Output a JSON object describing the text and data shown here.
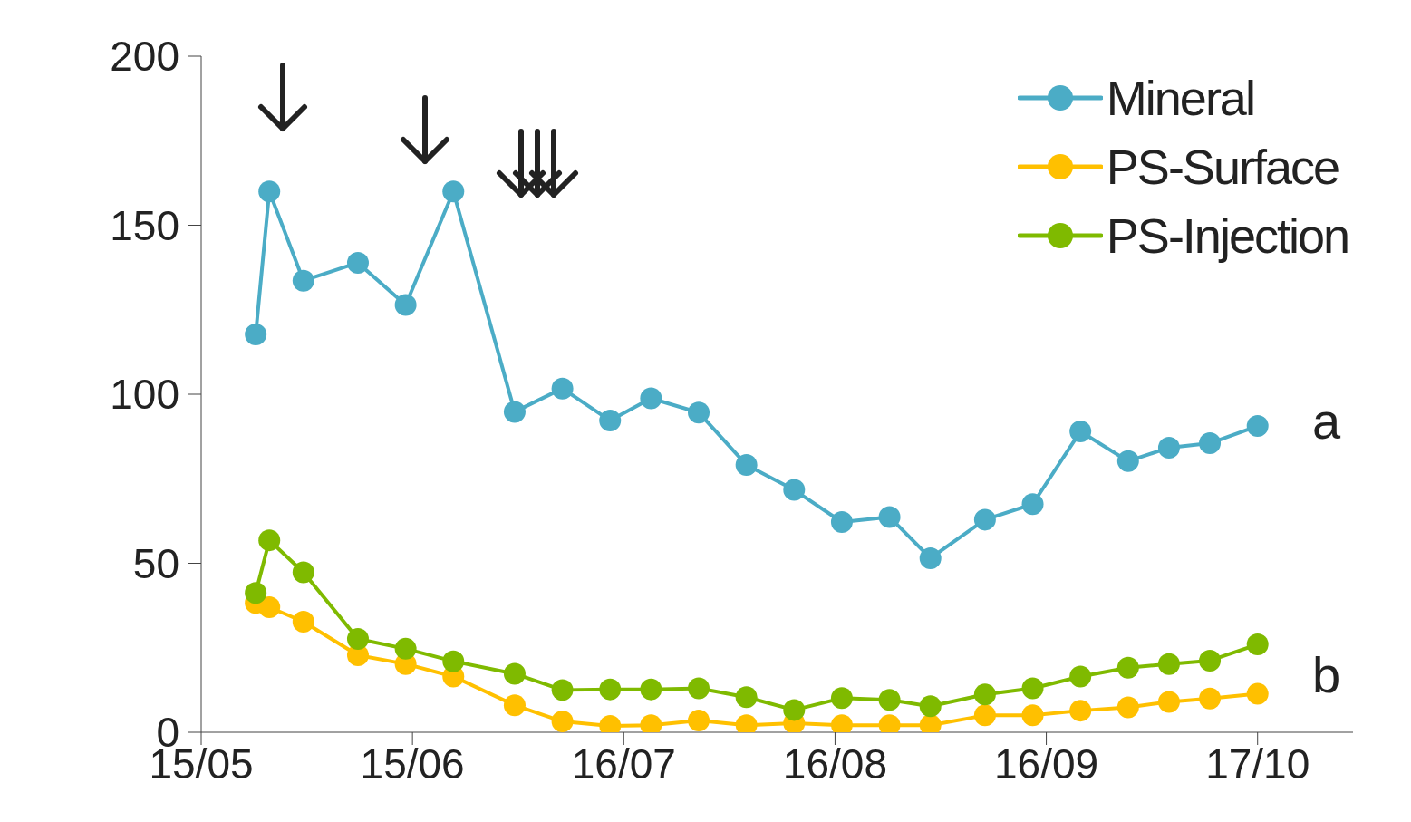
{
  "chart_data": {
    "type": "line",
    "x": [
      "--05-23",
      "--05-25",
      "--05-30",
      "--06-07",
      "--06-14",
      "--06-21",
      "--06-30",
      "--07-07",
      "--07-14",
      "--07-20",
      "--07-27",
      "--08-03",
      "--08-10",
      "--08-17",
      "--08-24",
      "--08-30",
      "--09-07",
      "--09-14",
      "--09-21",
      "--09-28",
      "--10-04",
      "--10-10",
      "--10-17"
    ],
    "series": [
      {
        "name": "Mineral",
        "color": "#4bacc6",
        "values": [
          117.7,
          160,
          133.6,
          138.9,
          126.4,
          160,
          94.8,
          101.7,
          92.2,
          98.8,
          94.6,
          79.1,
          71.7,
          62.2,
          63.7,
          51.5,
          62.9,
          67.5,
          89,
          80.2,
          84.2,
          85.5,
          90.6
        ]
      },
      {
        "name": "PS-Surface",
        "color": "#ffc000",
        "values": [
          38.3,
          37,
          32.7,
          22.8,
          20.2,
          16.5,
          8,
          3.2,
          1.9,
          2.1,
          3.5,
          2.1,
          2.7,
          2.1,
          2.1,
          2.1,
          5,
          5,
          6.4,
          7.4,
          9,
          10,
          11.4
        ]
      },
      {
        "name": "PS-Injection",
        "color": "#7fba00",
        "values": [
          41.2,
          56.8,
          47.3,
          27.6,
          24.7,
          21,
          17.3,
          12.5,
          12.7,
          12.7,
          13,
          10.4,
          6.6,
          10.1,
          9.6,
          7.7,
          11.2,
          13,
          16.5,
          19.1,
          20.2,
          21.2,
          26
        ]
      }
    ],
    "xlim": [
      "--05-15",
      "--10-31"
    ],
    "xticks": [
      {
        "value": "--05-15",
        "label": "15/05"
      },
      {
        "value": "--06-15",
        "label": "15/06"
      },
      {
        "value": "--07-16",
        "label": "16/07"
      },
      {
        "value": "--08-16",
        "label": "16/08"
      },
      {
        "value": "--09-16",
        "label": "16/09"
      },
      {
        "value": "--10-17",
        "label": "17/10"
      }
    ],
    "ylim": [
      0,
      200
    ],
    "yticks": [
      0,
      50,
      100,
      150,
      200
    ],
    "legend": "top right",
    "marker": "circle",
    "line_style": "solid",
    "annotations": [
      "a",
      "b"
    ]
  }
}
